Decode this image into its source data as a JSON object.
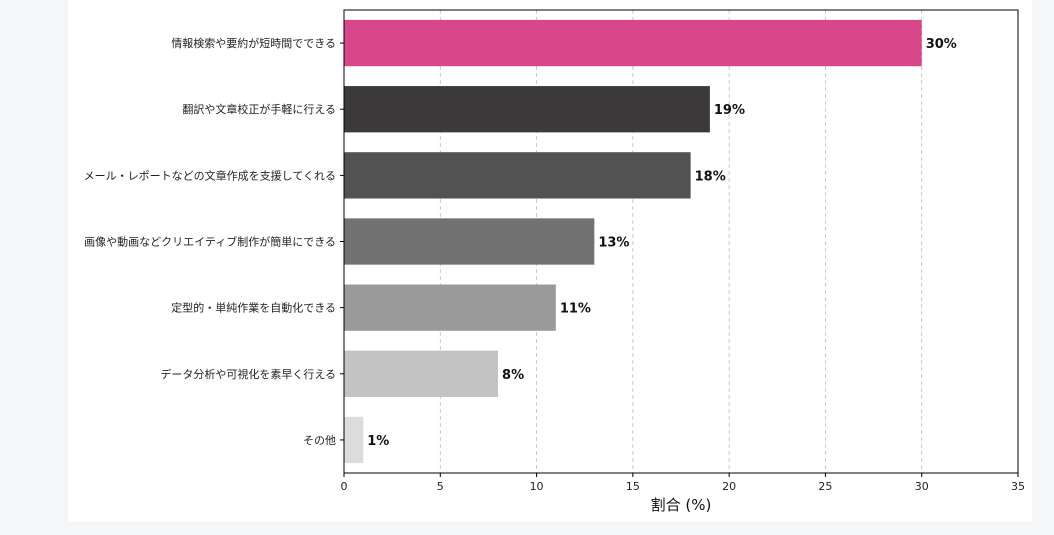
{
  "chart_data": {
    "type": "bar",
    "orientation": "horizontal",
    "categories": [
      "情報検索や要約が短時間でできる",
      "翻訳や文章校正が手軽に行える",
      "メール・レポートなどの文章作成を支援してくれる",
      "画像や動画などクリエイティブ制作が簡単にできる",
      "定型的・単純作業を自動化できる",
      "データ分析や可視化を素早く行える",
      "その他"
    ],
    "values": [
      30,
      19,
      18,
      13,
      11,
      8,
      1
    ],
    "value_labels": [
      "30%",
      "19%",
      "18%",
      "13%",
      "11%",
      "8%",
      "1%"
    ],
    "colors": [
      "#d9468a",
      "#3b393a",
      "#525252",
      "#727272",
      "#9a9a9a",
      "#c3c3c3",
      "#dcdcdc"
    ],
    "xlabel": "割合 (%)",
    "ylabel": "",
    "xlim": [
      0,
      35
    ],
    "xticks": [
      "0",
      "5",
      "10",
      "15",
      "20",
      "25",
      "30",
      "35"
    ],
    "grid": "vertical dashed"
  }
}
